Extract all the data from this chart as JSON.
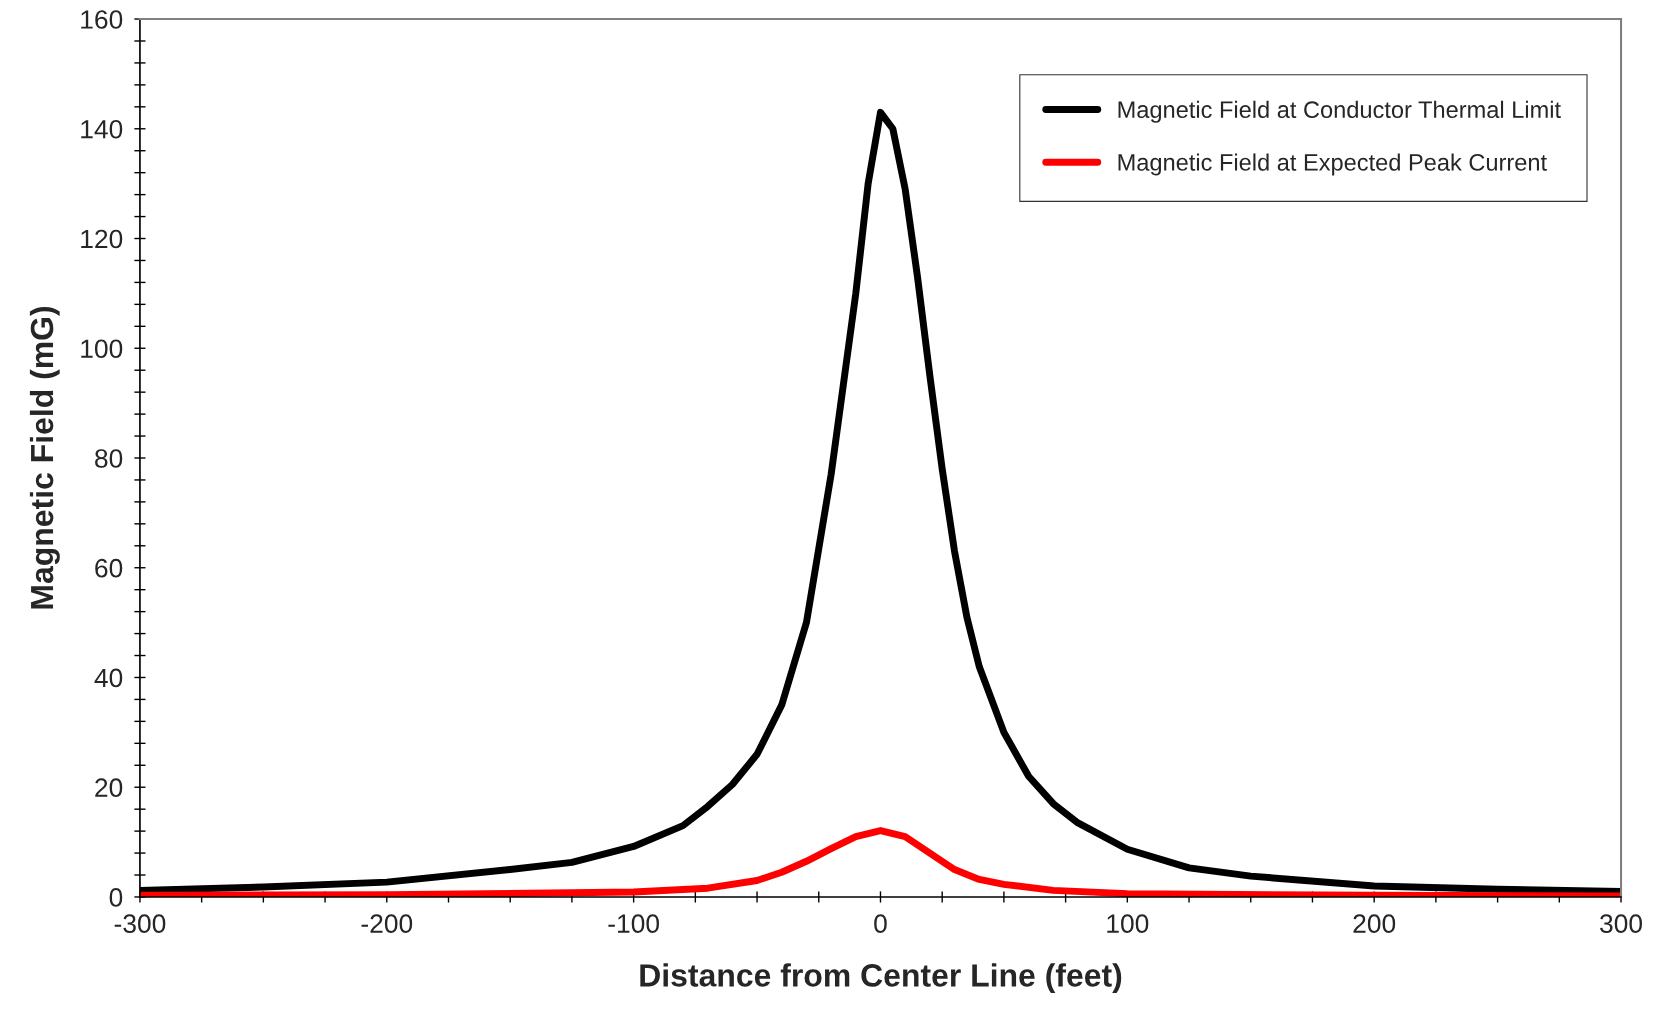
{
  "chart_data": {
    "type": "line",
    "xlabel": "Distance from Center Line (feet)",
    "ylabel": "Magnetic Field (mG)",
    "xlim": [
      -300,
      300
    ],
    "ylim": [
      0,
      160
    ],
    "xticks": [
      -300,
      {
        "value": -275,
        "label": null
      },
      {
        "value": -250,
        "label": null
      },
      {
        "value": -225,
        "label": null
      },
      -200,
      {
        "value": -175,
        "label": null
      },
      {
        "value": -150,
        "label": null
      },
      {
        "value": -125,
        "label": null
      },
      -100,
      {
        "value": -75,
        "label": null
      },
      {
        "value": -50,
        "label": null
      },
      {
        "value": -25,
        "label": null
      },
      0,
      {
        "value": 25,
        "label": null
      },
      {
        "value": 50,
        "label": null
      },
      {
        "value": 75,
        "label": null
      },
      100,
      {
        "value": 125,
        "label": null
      },
      {
        "value": 150,
        "label": null
      },
      {
        "value": 175,
        "label": null
      },
      200,
      {
        "value": 225,
        "label": null
      },
      {
        "value": 250,
        "label": null
      },
      {
        "value": 275,
        "label": null
      },
      300
    ],
    "yticks": [
      0,
      {
        "value": 4,
        "label": null
      },
      {
        "value": 8,
        "label": null
      },
      {
        "value": 12,
        "label": null
      },
      {
        "value": 16,
        "label": null
      },
      20,
      {
        "value": 24,
        "label": null
      },
      {
        "value": 28,
        "label": null
      },
      {
        "value": 32,
        "label": null
      },
      {
        "value": 36,
        "label": null
      },
      40,
      {
        "value": 44,
        "label": null
      },
      {
        "value": 48,
        "label": null
      },
      {
        "value": 52,
        "label": null
      },
      {
        "value": 56,
        "label": null
      },
      60,
      {
        "value": 64,
        "label": null
      },
      {
        "value": 68,
        "label": null
      },
      {
        "value": 72,
        "label": null
      },
      {
        "value": 76,
        "label": null
      },
      80,
      {
        "value": 84,
        "label": null
      },
      {
        "value": 88,
        "label": null
      },
      {
        "value": 92,
        "label": null
      },
      {
        "value": 96,
        "label": null
      },
      100,
      {
        "value": 104,
        "label": null
      },
      {
        "value": 108,
        "label": null
      },
      {
        "value": 112,
        "label": null
      },
      {
        "value": 116,
        "label": null
      },
      120,
      {
        "value": 124,
        "label": null
      },
      {
        "value": 128,
        "label": null
      },
      {
        "value": 132,
        "label": null
      },
      {
        "value": 136,
        "label": null
      },
      140,
      {
        "value": 144,
        "label": null
      },
      {
        "value": 148,
        "label": null
      },
      {
        "value": 152,
        "label": null
      },
      {
        "value": 156,
        "label": null
      },
      160
    ],
    "grid": false,
    "legend": "top right",
    "marker": "none",
    "line_style": "solid",
    "series": [
      {
        "name": "Magnetic Field at Conductor Thermal Limit",
        "color": "#000000",
        "x": [
          -300,
          -250,
          -200,
          -150,
          -125,
          -100,
          -80,
          -70,
          -60,
          -50,
          -40,
          -30,
          -20,
          -10,
          -5,
          0,
          5,
          10,
          15,
          20,
          25,
          30,
          35,
          40,
          50,
          60,
          70,
          80,
          100,
          125,
          150,
          200,
          250,
          300
        ],
        "values": [
          1.2,
          1.8,
          2.7,
          5.0,
          6.3,
          9.2,
          13,
          16.5,
          20.5,
          26,
          35,
          50,
          77,
          110,
          130,
          143,
          140,
          129,
          113,
          95,
          78,
          63,
          51,
          42,
          30,
          22,
          17,
          13.5,
          8.7,
          5.3,
          3.8,
          2.0,
          1.4,
          1.0
        ]
      },
      {
        "name": "Magnetic Field at Expected Peak Current",
        "color": "#ff0000",
        "x": [
          -300,
          -200,
          -100,
          -70,
          -50,
          -40,
          -30,
          -20,
          -10,
          0,
          10,
          20,
          30,
          40,
          50,
          70,
          100,
          200,
          300
        ],
        "values": [
          0.3,
          0.4,
          0.9,
          1.6,
          3,
          4.5,
          6.5,
          8.8,
          11,
          12.1,
          11,
          8,
          5,
          3.2,
          2.3,
          1.2,
          0.6,
          0.3,
          0.2
        ]
      }
    ]
  }
}
